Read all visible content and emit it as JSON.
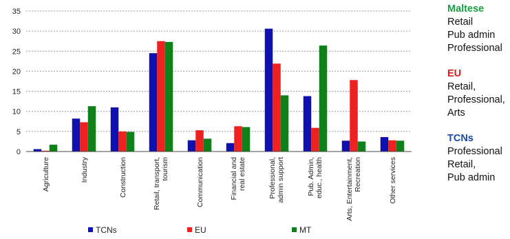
{
  "chart_data": {
    "type": "bar",
    "categories": [
      [
        "Agriculture"
      ],
      [
        "Industry"
      ],
      [
        "Construction"
      ],
      [
        "Retail, transport,",
        "tourism"
      ],
      [
        "Communication"
      ],
      [
        "Financial and",
        "real estate"
      ],
      [
        "Professional,",
        "admin support"
      ],
      [
        "Pub. Admin,",
        "educ., health"
      ],
      [
        "Arts, Entertainment,",
        "Recreation"
      ],
      [
        "Other services"
      ]
    ],
    "series": [
      {
        "name": "TCNs",
        "color": "#1010b0",
        "values": [
          0.6,
          8.2,
          11.0,
          24.5,
          2.8,
          2.1,
          30.6,
          13.8,
          2.7,
          3.6
        ]
      },
      {
        "name": "EU",
        "color": "#ee2020",
        "values": [
          0.2,
          7.3,
          5.0,
          27.5,
          5.3,
          6.3,
          21.9,
          5.9,
          17.8,
          2.8
        ]
      },
      {
        "name": "MT",
        "color": "#10801a",
        "values": [
          1.7,
          11.3,
          4.9,
          27.3,
          3.2,
          6.1,
          14.0,
          26.4,
          2.5,
          2.7
        ]
      }
    ],
    "ylim": [
      0,
      35
    ],
    "yticks": [
      0,
      5,
      10,
      15,
      20,
      25,
      30,
      35
    ],
    "grid": true,
    "legend": "bottom"
  },
  "side_panel": [
    {
      "title": "Maltese",
      "color": "#17a043",
      "items": [
        "Retail",
        "Pub admin",
        "Professional"
      ]
    },
    {
      "title": "EU",
      "color": "#dd1a1a",
      "items": [
        "Retail,",
        "Professional,",
        "Arts"
      ]
    },
    {
      "title": "TCNs",
      "color": "#1a4aa8",
      "items": [
        "Professional",
        "Retail,",
        "Pub admin"
      ]
    }
  ]
}
